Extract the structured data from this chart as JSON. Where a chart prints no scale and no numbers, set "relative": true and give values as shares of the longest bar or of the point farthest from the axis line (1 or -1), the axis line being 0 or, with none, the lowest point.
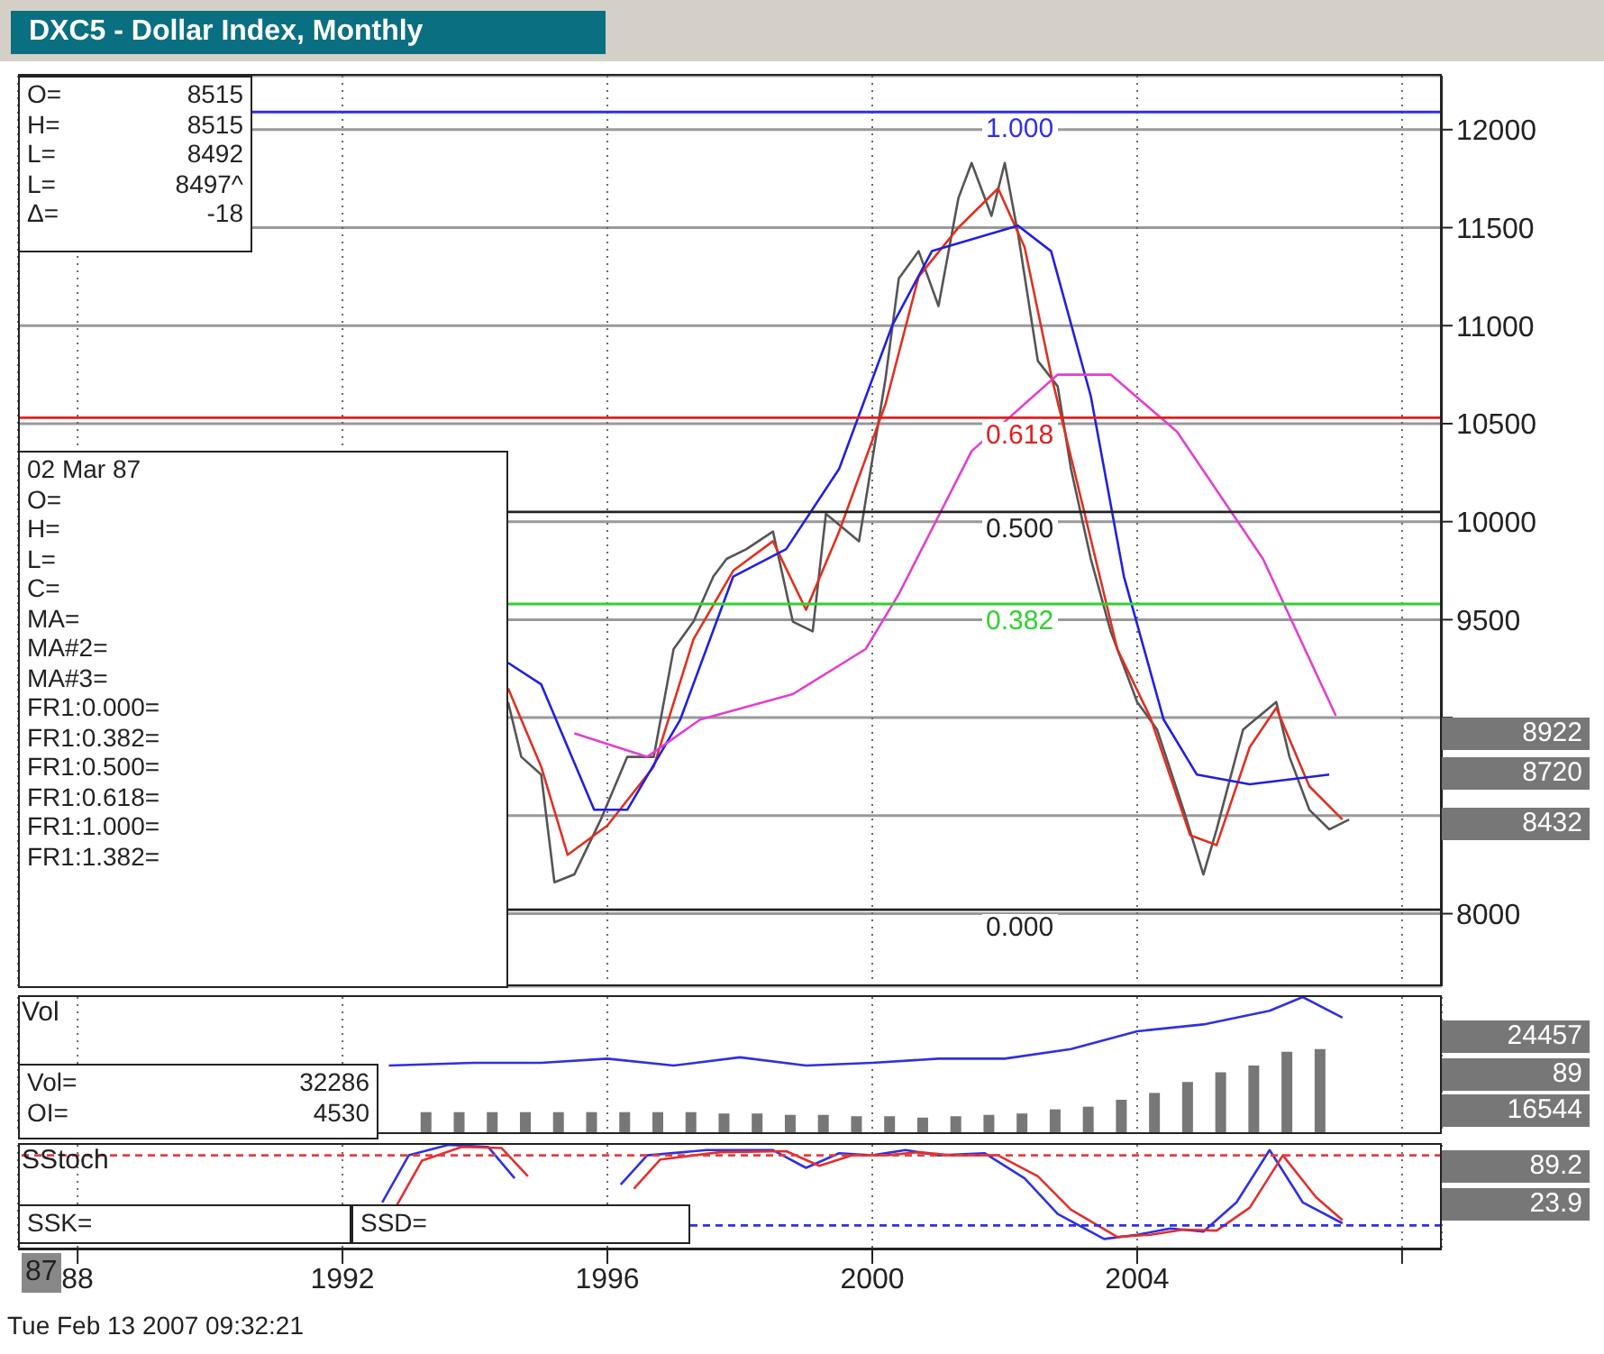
{
  "chart_data": [
    {
      "type": "line",
      "title": "DXC5 - Dollar Index, Monthly",
      "xlim": [
        1987.1,
        2008.6
      ],
      "xticks": [
        {
          "value": 1988,
          "label": null
        },
        {
          "value": 1992,
          "label": null
        },
        {
          "value": 1996,
          "label": null
        },
        {
          "value": 2000,
          "label": null
        },
        {
          "value": 2004,
          "label": null
        },
        {
          "value": 2008,
          "label": null
        }
      ],
      "ylim": [
        7630,
        12275
      ],
      "yticks": [
        8000,
        {
          "value": 8500,
          "label": null
        },
        {
          "value": 9000,
          "label": null
        },
        9500,
        10000,
        10500,
        11000,
        11500,
        12000
      ],
      "tick_labels": "y",
      "grid": true,
      "series": [
        {
          "color": "#555555",
          "x": [
            1994.5,
            1994.7,
            1995.0,
            1995.2,
            1995.5,
            1995.9,
            1996.3,
            1996.7,
            1997.0,
            1997.3,
            1997.6,
            1997.8,
            1998.1,
            1998.5,
            1998.8,
            1999.1,
            1999.3,
            1999.8,
            2000.2,
            2000.4,
            2000.7,
            2001.0,
            2001.3,
            2001.5,
            2001.8,
            2002.0,
            2002.2,
            2002.5,
            2002.8,
            2003.0,
            2003.3,
            2003.6,
            2004.0,
            2004.3,
            2004.7,
            2005.0,
            2005.2,
            2005.6,
            2006.1,
            2006.3,
            2006.6,
            2006.9,
            2007.2
          ],
          "values": [
            9080,
            8800,
            8710,
            8160,
            8200,
            8480,
            8800,
            8800,
            9350,
            9490,
            9720,
            9810,
            9860,
            9950,
            9490,
            9440,
            10040,
            9900,
            10730,
            11240,
            11380,
            11100,
            11650,
            11830,
            11560,
            11830,
            11470,
            10820,
            10690,
            10270,
            9810,
            9440,
            9080,
            8940,
            8530,
            8200,
            8430,
            8940,
            9080,
            8800,
            8530,
            8430,
            8480
          ]
        },
        {
          "color": "#e03020",
          "x": [
            1994.5,
            1995.0,
            1995.4,
            1996.0,
            1996.7,
            1997.3,
            1997.9,
            1998.5,
            1999.0,
            1999.5,
            2000.2,
            2000.7,
            2001.3,
            2001.9,
            2002.3,
            2002.7,
            2003.2,
            2003.7,
            2004.2,
            2004.8,
            2005.2,
            2005.7,
            2006.1,
            2006.6,
            2007.1
          ],
          "values": [
            9150,
            8750,
            8300,
            8450,
            8750,
            9400,
            9750,
            9900,
            9550,
            9950,
            10600,
            11250,
            11500,
            11700,
            11400,
            10750,
            10050,
            9350,
            9000,
            8400,
            8350,
            8850,
            9050,
            8650,
            8480
          ]
        },
        {
          "color": "#2020e0",
          "x": [
            1994.5,
            1995.0,
            1995.8,
            1996.3,
            1997.1,
            1997.9,
            1998.7,
            1999.5,
            2000.3,
            2000.9,
            2002.2,
            2002.7,
            2003.3,
            2003.8,
            2004.4,
            2004.9,
            2005.7,
            2006.9
          ],
          "values": [
            9280,
            9170,
            8530,
            8530,
            8990,
            9720,
            9860,
            10270,
            11000,
            11380,
            11510,
            11380,
            10640,
            9720,
            8990,
            8710,
            8660,
            8710
          ]
        },
        {
          "color": "#e040d0",
          "x": [
            1995.5,
            1996.6,
            1997.4,
            1998.8,
            1999.9,
            2000.4,
            2001.5,
            2002.8,
            2003.6,
            2004.6,
            2005.9,
            2007.0
          ],
          "values": [
            8920,
            8800,
            8990,
            9120,
            9350,
            9630,
            10360,
            10750,
            10750,
            10460,
            9810,
            9010
          ]
        }
      ],
      "ref_lines": [
        {
          "axis": "y",
          "value": 12090,
          "color": "#3030e0"
        },
        {
          "axis": "y",
          "value": 10530,
          "color": "#e02020"
        },
        {
          "axis": "y",
          "value": 10050,
          "color": "#222222"
        },
        {
          "axis": "y",
          "value": 9580,
          "color": "#30d030"
        },
        {
          "axis": "y",
          "value": 8020,
          "color": "#222222"
        }
      ],
      "annotations": [
        "O=\t8515\nH=\t8515\nL=\t8492\nL=\t8497^\nΔ=\t-18",
        "02 Mar 87\nO=\nH=\nL=\nC=\nMA=\nMA#2=\nMA#3=\nFR1:0.000=\nFR1:0.382=\nFR1:0.500=\nFR1:0.618=\nFR1:1.000=\nFR1:1.382=",
        "8922",
        "8720",
        "8432",
        {
          "text": "1.000",
          "y": 12090
        },
        {
          "text": "0.618",
          "y": 10530
        },
        {
          "text": "0.500",
          "y": 10050
        },
        {
          "text": "0.382",
          "y": 9580
        },
        {
          "text": "0.000",
          "y": 8020
        }
      ]
    },
    {
      "type": "bar",
      "title": "Vol",
      "relative": true,
      "xlim": [
        1987.1,
        2008.6
      ],
      "xticks": [
        {
          "value": 1988,
          "label": null
        },
        {
          "value": 1992,
          "label": null
        },
        {
          "value": 1996,
          "label": null
        },
        {
          "value": 2000,
          "label": null
        },
        {
          "value": 2004,
          "label": null
        },
        {
          "value": 2008,
          "label": null
        }
      ],
      "tick_labels": false,
      "grid": "x",
      "x": [
        1993.25,
        1993.75,
        1994.25,
        1994.75,
        1995.25,
        1995.75,
        1996.25,
        1996.75,
        1997.25,
        1997.75,
        1998.25,
        1998.75,
        1999.25,
        1999.75,
        2000.25,
        2000.75,
        2001.25,
        2001.75,
        2002.25,
        2002.75,
        2003.25,
        2003.75,
        2004.25,
        2004.75,
        2005.25,
        2005.75,
        2006.25,
        2006.75
      ],
      "series": [
        {
          "color": "#777777",
          "values": [
            0.16,
            0.16,
            0.16,
            0.16,
            0.16,
            0.16,
            0.16,
            0.16,
            0.16,
            0.15,
            0.15,
            0.14,
            0.14,
            0.13,
            0.13,
            0.12,
            0.13,
            0.14,
            0.15,
            0.18,
            0.2,
            0.25,
            0.3,
            0.38,
            0.45,
            0.5,
            0.6,
            0.62
          ]
        },
        {
          "type": "line",
          "color": "#3030e0",
          "x": [
            1992.7,
            1994.0,
            1995.0,
            1996.0,
            1997.0,
            1998.0,
            1999.0,
            2000.0,
            2001.0,
            2002.0,
            2003.0,
            2004.0,
            2005.0,
            2006.0,
            2006.5,
            2007.1
          ],
          "values": [
            0.5,
            0.52,
            0.52,
            0.55,
            0.5,
            0.56,
            0.5,
            0.52,
            0.55,
            0.55,
            0.62,
            0.75,
            0.8,
            0.9,
            1,
            0.85
          ]
        }
      ],
      "annotations": [
        "Vol=\t32286\nOI=\t4530",
        "24457",
        "89",
        "16544"
      ]
    },
    {
      "type": "line",
      "title": "SStoch",
      "relative": true,
      "xlim": [
        1987.1,
        2008.6
      ],
      "xticks": [
        {
          "value": 1988,
          "label": "88"
        },
        1992,
        1996,
        2000,
        2004,
        {
          "value": 2008,
          "label": null
        }
      ],
      "tick_labels": "x",
      "grid": "x",
      "series": [
        {
          "color": "#3030e0",
          "x": [
            1992.6,
            1993.0,
            1993.6,
            1994.2,
            1994.6,
            1995.3,
            1996.2,
            1996.6,
            1997.5,
            1998.5,
            1999.0,
            1999.5,
            2000.0,
            2000.5,
            2001.0,
            2001.7,
            2002.3,
            2002.8,
            2003.5,
            2004.0,
            2004.5,
            2005.0,
            2005.5,
            2006.0,
            2006.5,
            2007.1
          ],
          "values": [
            0.45,
            0.9,
            1,
            0.98,
            0.68,
            null,
            0.62,
            0.9,
            0.95,
            0.95,
            0.78,
            0.92,
            0.9,
            0.95,
            0.9,
            0.92,
            0.68,
            0.34,
            0.1,
            0.14,
            0.2,
            0.17,
            0.45,
            0.95,
            0.45,
            0.25
          ]
        },
        {
          "color": "#e03030",
          "x": [
            1992.8,
            1993.2,
            1993.8,
            1994.4,
            1994.8,
            1995.3,
            1996.4,
            1996.8,
            1997.7,
            1998.7,
            1999.2,
            1999.7,
            2000.2,
            2000.7,
            2001.2,
            2001.9,
            2002.5,
            2003.0,
            2003.7,
            2004.2,
            2004.7,
            2005.2,
            2005.7,
            2006.2,
            2006.7,
            2007.1
          ],
          "values": [
            0.4,
            0.85,
            0.98,
            0.97,
            0.7,
            null,
            0.58,
            0.86,
            0.93,
            0.94,
            0.8,
            0.9,
            0.9,
            0.93,
            0.9,
            0.9,
            0.7,
            0.38,
            0.12,
            0.14,
            0.19,
            0.18,
            0.4,
            0.9,
            0.5,
            0.28
          ]
        }
      ],
      "ref_lines": [
        {
          "axis": "y",
          "value": 0.9,
          "color": "#e04040",
          "line_style": "dashed"
        },
        {
          "axis": "y",
          "value": 0.23,
          "color": "#3030e0",
          "line_style": "dashed"
        }
      ],
      "annotations": [
        "SSK=",
        "SSD=",
        "87",
        "Tue Feb 13 2007 09:32:21",
        "89.2",
        "23.9"
      ]
    }
  ]
}
